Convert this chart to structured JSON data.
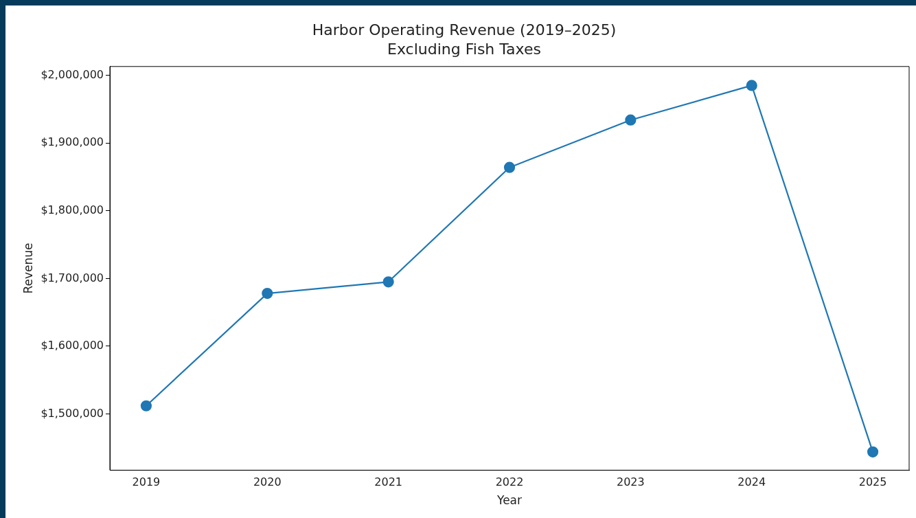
{
  "chart_data": {
    "type": "line",
    "title": "Harbor Operating Revenue (2019–2025)",
    "subtitle": "Excluding Fish Taxes",
    "xlabel": "Year",
    "ylabel": "Revenue",
    "x": [
      2019,
      2020,
      2021,
      2022,
      2023,
      2024,
      2025
    ],
    "series": [
      {
        "color": "#1f77b4",
        "values": [
          1512000,
          1678000,
          1695000,
          1864000,
          1934000,
          1985000,
          1444000
        ]
      }
    ],
    "xlim": [
      2018.7,
      2025.3
    ],
    "xticks": [
      2019,
      2020,
      2021,
      2022,
      2023,
      2024,
      2025
    ],
    "ylim": [
      1417000,
      2013000
    ],
    "yticks": [
      {
        "value": 1500000,
        "label": "$1,500,000"
      },
      {
        "value": 1600000,
        "label": "$1,600,000"
      },
      {
        "value": 1700000,
        "label": "$1,700,000"
      },
      {
        "value": 1800000,
        "label": "$1,800,000"
      },
      {
        "value": 1900000,
        "label": "$1,900,000"
      },
      {
        "value": 2000000,
        "label": "$2,000,000"
      }
    ],
    "grid": false,
    "legend": false,
    "marker": "circle",
    "line_style": "solid"
  }
}
